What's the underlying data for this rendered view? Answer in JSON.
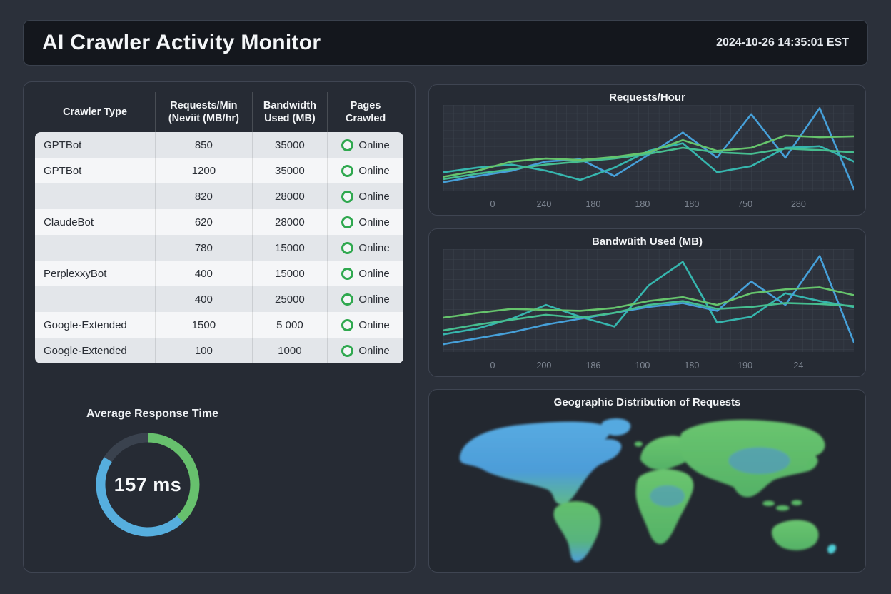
{
  "header": {
    "title": "AI Crawler Activity Monitor",
    "timestamp": "2024-10-26 14:35:01 EST"
  },
  "table": {
    "columns": [
      {
        "line1": "Crawler Type",
        "line2": ""
      },
      {
        "line1": "Requests/Min",
        "line2": "(Neviit (MB/hr)"
      },
      {
        "line1": "Bandwidth",
        "line2": "Used (MB)"
      },
      {
        "line1": "Pages",
        "line2": "Crawled"
      }
    ],
    "rows": [
      {
        "crawler": "GPTBot",
        "requests": "850",
        "bandwidth": "35000",
        "status": "Online"
      },
      {
        "crawler": "GPTBot",
        "requests": "1200",
        "bandwidth": "35000",
        "status": "Online"
      },
      {
        "crawler": "",
        "requests": "820",
        "bandwidth": "28000",
        "status": "Online"
      },
      {
        "crawler": "ClaudeBot",
        "requests": "620",
        "bandwidth": "28000",
        "status": "Online"
      },
      {
        "crawler": "",
        "requests": "780",
        "bandwidth": "15000",
        "status": "Online"
      },
      {
        "crawler": "PerplexxyBot",
        "requests": "400",
        "bandwidth": "15000",
        "status": "Online"
      },
      {
        "crawler": "",
        "requests": "400",
        "bandwidth": "25000",
        "status": "Online"
      },
      {
        "crawler": "Google-Extended",
        "requests": "1500",
        "bandwidth": "5 000",
        "status": "Online"
      },
      {
        "crawler": "Google-Extended",
        "requests": "100",
        "bandwidth": "1000",
        "status": "Online"
      }
    ],
    "status_color": "#2fa84f"
  },
  "gauge": {
    "title": "Average Response Time",
    "value_label": "157 ms",
    "segments": [
      {
        "name": "green",
        "color": "#67c06d",
        "percent": 38
      },
      {
        "name": "blue",
        "color": "#56aede",
        "percent": 46
      },
      {
        "name": "track",
        "color": "#3a424e",
        "percent": 16
      }
    ]
  },
  "chart_data": [
    {
      "type": "line",
      "title": "Requests/Hour",
      "xlabel": "",
      "ylabel": "",
      "grid": true,
      "legend_position": "none",
      "x_tick_labels": [
        "0",
        "240",
        "180",
        "180",
        "180",
        "750",
        "280"
      ],
      "ylim": [
        0,
        112
      ],
      "series": [
        {
          "name": "blue",
          "color": "#46a0d9",
          "values": [
            11,
            19,
            26,
            38,
            41,
            19,
            47,
            76,
            43,
            100,
            43,
            108,
            2
          ]
        },
        {
          "name": "teal",
          "color": "#36b6ae",
          "values": [
            24,
            30,
            34,
            26,
            14,
            30,
            52,
            62,
            24,
            32,
            56,
            58,
            38
          ]
        },
        {
          "name": "seagreen",
          "color": "#46be90",
          "values": [
            15,
            22,
            28,
            34,
            38,
            42,
            48,
            56,
            50,
            48,
            55,
            53,
            50
          ]
        },
        {
          "name": "green",
          "color": "#66c46c",
          "values": [
            18,
            26,
            38,
            42,
            40,
            44,
            50,
            66,
            52,
            56,
            72,
            70,
            71
          ]
        }
      ]
    },
    {
      "type": "line",
      "title": "Bandwüith Used (MB)",
      "xlabel": "",
      "ylabel": "",
      "grid": true,
      "legend_position": "none",
      "x_tick_labels": [
        "0",
        "200",
        "186",
        "100",
        "180",
        "190",
        "24"
      ],
      "ylim": [
        0,
        105
      ],
      "series": [
        {
          "name": "teal",
          "color": "#36b6ae",
          "values": [
            18,
            24,
            34,
            48,
            36,
            26,
            68,
            92,
            30,
            36,
            60,
            52,
            46
          ]
        },
        {
          "name": "blue",
          "color": "#46a0d9",
          "values": [
            8,
            14,
            20,
            28,
            34,
            40,
            46,
            50,
            42,
            72,
            48,
            98,
            10
          ]
        },
        {
          "name": "seagreen",
          "color": "#46be90",
          "values": [
            22,
            28,
            33,
            38,
            35,
            40,
            48,
            52,
            44,
            46,
            50,
            49,
            47
          ]
        },
        {
          "name": "green",
          "color": "#66c46c",
          "values": [
            35,
            40,
            44,
            43,
            42,
            45,
            52,
            56,
            48,
            60,
            64,
            66,
            58
          ]
        }
      ]
    },
    {
      "type": "map",
      "title": "Geographic Distribution of Requests"
    }
  ]
}
